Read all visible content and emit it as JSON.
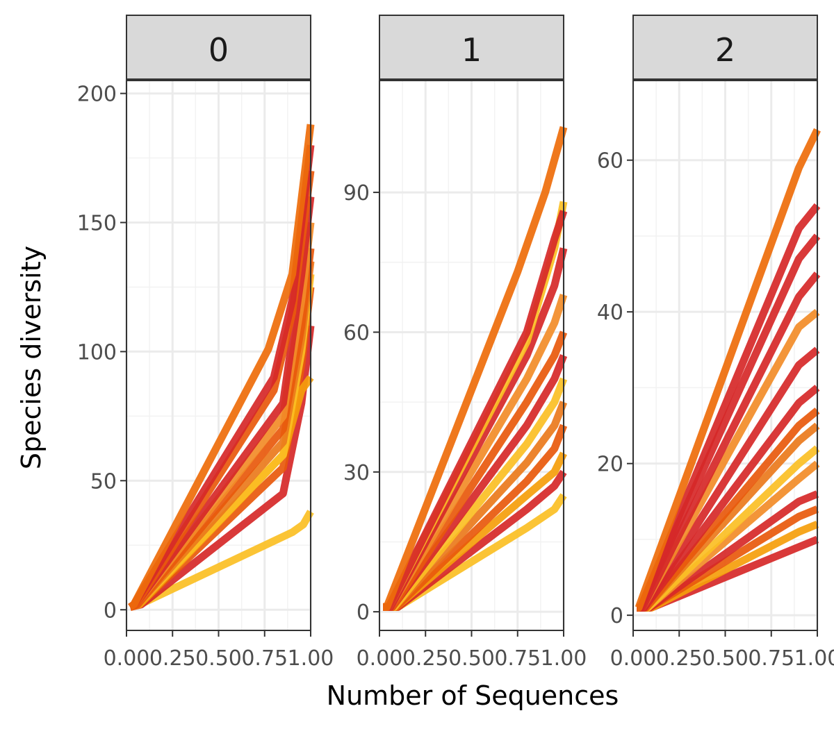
{
  "chart_data": {
    "type": "line",
    "xlabel": "Number of Sequences",
    "ylabel": "Species diversity",
    "facets": [
      {
        "label": "0",
        "xlim": [
          0,
          1
        ],
        "ylim": [
          -8,
          205
        ],
        "x_ticks": [
          0,
          0.25,
          0.5,
          0.75,
          1
        ],
        "x_tick_labels": [
          "0.00",
          "0.25",
          "0.50",
          "0.75",
          "1.00"
        ],
        "y_ticks": [
          0,
          50,
          100,
          150,
          200
        ],
        "y_tick_labels": [
          "0",
          "50",
          "100",
          "150",
          "200"
        ],
        "series": [
          {
            "color": "#fbbf24",
            "x": [
              0.02,
              0.1,
              0.9,
              0.96,
              1.0
            ],
            "y": [
              1,
              3,
              30,
              33,
              38
            ]
          },
          {
            "color": "#d62828",
            "x": [
              0.02,
              0.08,
              0.85,
              0.95,
              1.0
            ],
            "y": [
              1,
              2,
              45,
              80,
              110
            ]
          },
          {
            "color": "#e8590c",
            "x": [
              0.02,
              0.07,
              0.85,
              0.95,
              1.0
            ],
            "y": [
              1,
              2,
              55,
              95,
              125
            ]
          },
          {
            "color": "#f59e0b",
            "x": [
              0.02,
              0.07,
              0.85,
              0.95,
              1.0
            ],
            "y": [
              1,
              2,
              60,
              85,
              90
            ]
          },
          {
            "color": "#fbbf24",
            "x": [
              0.02,
              0.06,
              0.85,
              0.95,
              1.0
            ],
            "y": [
              1,
              2,
              60,
              100,
              130
            ]
          },
          {
            "color": "#ea7a1c",
            "x": [
              0.02,
              0.06,
              0.85,
              0.95,
              1.0
            ],
            "y": [
              1,
              2,
              65,
              105,
              135
            ]
          },
          {
            "color": "#e8590c",
            "x": [
              0.02,
              0.06,
              0.85,
              0.95,
              1.0
            ],
            "y": [
              1,
              2,
              70,
              110,
              140
            ]
          },
          {
            "color": "#f28c28",
            "x": [
              0.02,
              0.05,
              0.85,
              0.95,
              1.0
            ],
            "y": [
              1,
              2,
              75,
              120,
              150
            ]
          },
          {
            "color": "#d62828",
            "x": [
              0.02,
              0.05,
              0.85,
              0.95,
              1.0
            ],
            "y": [
              1,
              2,
              80,
              130,
              160
            ]
          },
          {
            "color": "#e8590c",
            "x": [
              0.02,
              0.05,
              0.8,
              0.9,
              1.0
            ],
            "y": [
              1,
              2,
              85,
              115,
              170
            ]
          },
          {
            "color": "#d62828",
            "x": [
              0.02,
              0.04,
              0.8,
              0.9,
              1.0
            ],
            "y": [
              1,
              2,
              90,
              120,
              180
            ]
          },
          {
            "color": "#ee6c0a",
            "x": [
              0.02,
              0.04,
              0.77,
              0.9,
              1.0
            ],
            "y": [
              1,
              2,
              101,
              130,
              188
            ]
          }
        ]
      },
      {
        "label": "1",
        "xlim": [
          0,
          1
        ],
        "ylim": [
          -4,
          114
        ],
        "x_ticks": [
          0,
          0.25,
          0.5,
          0.75,
          1
        ],
        "x_tick_labels": [
          "0.00",
          "0.25",
          "0.50",
          "0.75",
          "1.00"
        ],
        "y_ticks": [
          0,
          30,
          60,
          90
        ],
        "y_tick_labels": [
          "0",
          "30",
          "60",
          "90"
        ],
        "series": [
          {
            "color": "#fbbf24",
            "x": [
              0.02,
              0.1,
              0.8,
              0.95,
              1.0
            ],
            "y": [
              1,
              1,
              18,
              22,
              25
            ]
          },
          {
            "color": "#d62828",
            "x": [
              0.02,
              0.1,
              0.8,
              0.95,
              1.0
            ],
            "y": [
              1,
              1,
              22,
              27,
              30
            ]
          },
          {
            "color": "#f59e0b",
            "x": [
              0.02,
              0.09,
              0.8,
              0.95,
              1.0
            ],
            "y": [
              1,
              1,
              25,
              30,
              34
            ]
          },
          {
            "color": "#e8590c",
            "x": [
              0.02,
              0.09,
              0.8,
              0.95,
              1.0
            ],
            "y": [
              1,
              1,
              28,
              35,
              40
            ]
          },
          {
            "color": "#ea7a1c",
            "x": [
              0.02,
              0.08,
              0.8,
              0.95,
              1.0
            ],
            "y": [
              1,
              1,
              32,
              40,
              45
            ]
          },
          {
            "color": "#fbbf24",
            "x": [
              0.02,
              0.08,
              0.8,
              0.95,
              1.0
            ],
            "y": [
              1,
              1,
              36,
              45,
              50
            ]
          },
          {
            "color": "#d62828",
            "x": [
              0.02,
              0.07,
              0.8,
              0.95,
              1.0
            ],
            "y": [
              1,
              1,
              40,
              50,
              55
            ]
          },
          {
            "color": "#e8590c",
            "x": [
              0.02,
              0.07,
              0.8,
              0.95,
              1.0
            ],
            "y": [
              1,
              1,
              45,
              55,
              60
            ]
          },
          {
            "color": "#f28c28",
            "x": [
              0.02,
              0.06,
              0.8,
              0.95,
              1.0
            ],
            "y": [
              1,
              1,
              50,
              62,
              68
            ]
          },
          {
            "color": "#d62828",
            "x": [
              0.02,
              0.06,
              0.8,
              0.95,
              1.0
            ],
            "y": [
              1,
              1,
              55,
              70,
              78
            ]
          },
          {
            "color": "#fbbf24",
            "x": [
              0.02,
              0.05,
              0.8,
              0.95,
              1.0
            ],
            "y": [
              1,
              1,
              58,
              78,
              88
            ]
          },
          {
            "color": "#d62828",
            "x": [
              0.02,
              0.05,
              0.8,
              0.95,
              1.0
            ],
            "y": [
              1,
              1,
              60,
              80,
              86
            ]
          },
          {
            "color": "#ee6c0a",
            "x": [
              0.02,
              0.04,
              0.75,
              0.9,
              1.0
            ],
            "y": [
              1,
              1,
              73,
              90,
              104
            ]
          }
        ]
      },
      {
        "label": "2",
        "xlim": [
          0,
          1
        ],
        "ylim": [
          -2,
          70.5
        ],
        "x_ticks": [
          0,
          0.25,
          0.5,
          0.75,
          1
        ],
        "x_tick_labels": [
          "0.00",
          "0.25",
          "0.50",
          "0.75",
          "1.00"
        ],
        "y_ticks": [
          0,
          20,
          40,
          60
        ],
        "y_tick_labels": [
          "0",
          "20",
          "40",
          "60"
        ],
        "series": [
          {
            "color": "#d62828",
            "x": [
              0.02,
              0.1,
              0.9,
              1.0
            ],
            "y": [
              1,
              1,
              9,
              10
            ]
          },
          {
            "color": "#f59e0b",
            "x": [
              0.02,
              0.1,
              0.9,
              1.0
            ],
            "y": [
              1,
              1,
              11,
              12
            ]
          },
          {
            "color": "#e8590c",
            "x": [
              0.02,
              0.09,
              0.9,
              1.0
            ],
            "y": [
              1,
              1,
              13,
              14
            ]
          },
          {
            "color": "#d62828",
            "x": [
              0.02,
              0.09,
              0.9,
              1.0
            ],
            "y": [
              1,
              1,
              15,
              16
            ]
          },
          {
            "color": "#f28c28",
            "x": [
              0.02,
              0.08,
              0.9,
              1.0
            ],
            "y": [
              1,
              1,
              18,
              20
            ]
          },
          {
            "color": "#fbbf24",
            "x": [
              0.02,
              0.08,
              0.9,
              1.0
            ],
            "y": [
              1,
              1,
              20,
              22
            ]
          },
          {
            "color": "#ea7a1c",
            "x": [
              0.02,
              0.07,
              0.9,
              1.0
            ],
            "y": [
              1,
              1,
              23,
              25
            ]
          },
          {
            "color": "#e8590c",
            "x": [
              0.02,
              0.07,
              0.9,
              1.0
            ],
            "y": [
              1,
              1,
              25,
              27
            ]
          },
          {
            "color": "#d62828",
            "x": [
              0.02,
              0.06,
              0.9,
              1.0
            ],
            "y": [
              1,
              1,
              28,
              30
            ]
          },
          {
            "color": "#d62828",
            "x": [
              0.02,
              0.06,
              0.9,
              1.0
            ],
            "y": [
              1,
              1,
              33,
              35
            ]
          },
          {
            "color": "#f28c28",
            "x": [
              0.02,
              0.05,
              0.9,
              1.0
            ],
            "y": [
              1,
              1,
              38,
              40
            ]
          },
          {
            "color": "#d62828",
            "x": [
              0.02,
              0.05,
              0.9,
              1.0
            ],
            "y": [
              1,
              1,
              42,
              45
            ]
          },
          {
            "color": "#d62828",
            "x": [
              0.02,
              0.04,
              0.9,
              1.0
            ],
            "y": [
              1,
              1,
              47,
              50
            ]
          },
          {
            "color": "#d62828",
            "x": [
              0.02,
              0.04,
              0.9,
              1.0
            ],
            "y": [
              1,
              1,
              51,
              54
            ]
          },
          {
            "color": "#ee6c0a",
            "x": [
              0.02,
              0.03,
              0.9,
              1.0
            ],
            "y": [
              1,
              1,
              59,
              64
            ]
          }
        ]
      }
    ]
  }
}
